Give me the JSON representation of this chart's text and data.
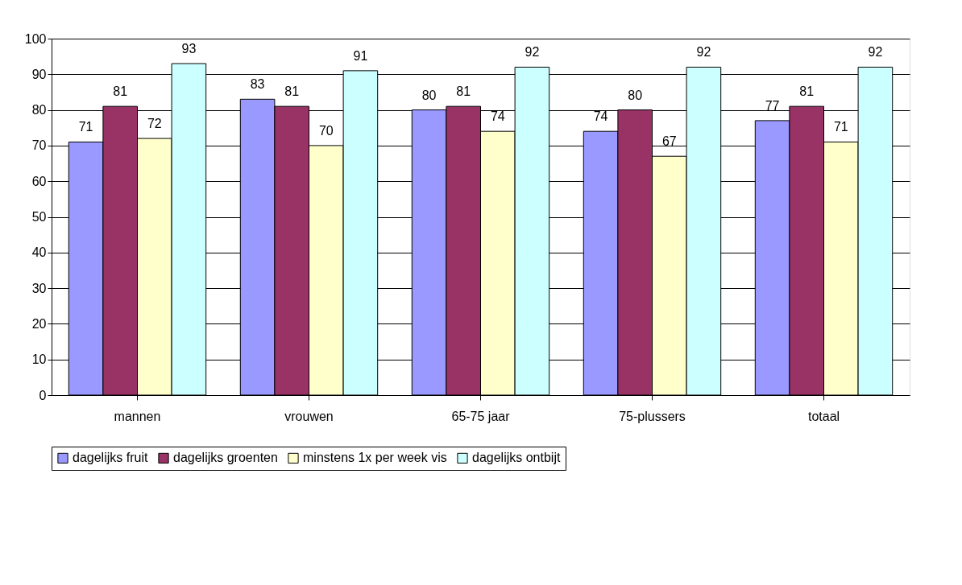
{
  "chart_data": {
    "type": "bar",
    "categories": [
      "mannen",
      "vrouwen",
      "65-75 jaar",
      "75-plussers",
      "totaal"
    ],
    "series": [
      {
        "name": "dagelijks fruit",
        "color": "#9999ff",
        "values": [
          71,
          83,
          80,
          74,
          77
        ]
      },
      {
        "name": "dagelijks groenten",
        "color": "#993366",
        "values": [
          81,
          81,
          81,
          80,
          81
        ]
      },
      {
        "name": "minstens 1x per week vis",
        "color": "#ffffcc",
        "values": [
          72,
          70,
          74,
          67,
          71
        ]
      },
      {
        "name": "dagelijks ontbijt",
        "color": "#ccffff",
        "values": [
          93,
          91,
          92,
          92,
          92
        ]
      }
    ],
    "ylim": [
      0,
      100
    ],
    "yticks": [
      0,
      10,
      20,
      30,
      40,
      50,
      60,
      70,
      80,
      90,
      100
    ],
    "grid": "y",
    "legend": "bottom",
    "data_labels": true
  }
}
